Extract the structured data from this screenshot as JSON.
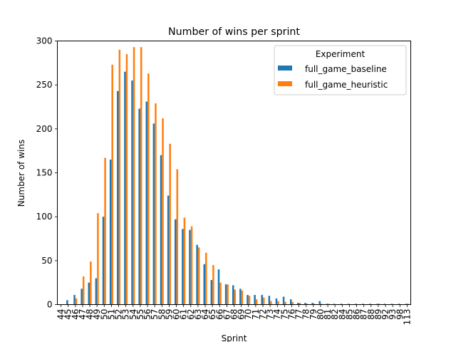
{
  "chart_data": {
    "type": "bar",
    "title": "Number of wins per sprint",
    "xlabel": "Sprint",
    "ylabel": "Number of wins",
    "ylim": [
      0,
      300
    ],
    "yticks": [
      0,
      50,
      100,
      150,
      200,
      250,
      300
    ],
    "grid": false,
    "legend": {
      "title": "Experiment",
      "placement": "top-right"
    },
    "categories": [
      "44",
      "45",
      "46",
      "47",
      "48",
      "49",
      "50",
      "51",
      "52",
      "53",
      "54",
      "55",
      "56",
      "57",
      "58",
      "59",
      "60",
      "61",
      "62",
      "63",
      "64",
      "65",
      "66",
      "67",
      "68",
      "69",
      "70",
      "71",
      "72",
      "73",
      "74",
      "75",
      "76",
      "77",
      "78",
      "79",
      "80",
      "81",
      "82",
      "84",
      "85",
      "86",
      "87",
      "88",
      "89",
      "92",
      "93",
      "98",
      "113"
    ],
    "series": [
      {
        "name": "full_game_baseline",
        "color": "#1f77b4",
        "values": [
          0,
          5,
          11,
          18,
          25,
          30,
          100,
          165,
          243,
          265,
          255,
          223,
          231,
          206,
          170,
          124,
          97,
          86,
          85,
          68,
          46,
          28,
          40,
          23,
          22,
          18,
          11,
          11,
          11,
          10,
          7,
          9,
          6,
          2,
          2,
          2,
          4,
          1,
          1,
          1,
          1,
          1,
          1,
          1,
          1,
          1,
          1,
          1,
          1
        ]
      },
      {
        "name": "full_game_heuristic",
        "color": "#ff7f0e",
        "values": [
          0,
          0,
          7,
          32,
          49,
          104,
          167,
          273,
          290,
          285,
          293,
          293,
          263,
          229,
          212,
          183,
          154,
          99,
          89,
          65,
          59,
          45,
          25,
          23,
          17,
          16,
          10,
          6,
          8,
          4,
          4,
          3,
          3,
          2,
          1,
          1,
          1,
          1,
          0,
          0,
          0,
          0,
          0,
          0,
          1,
          0,
          0,
          0,
          1
        ]
      }
    ]
  }
}
